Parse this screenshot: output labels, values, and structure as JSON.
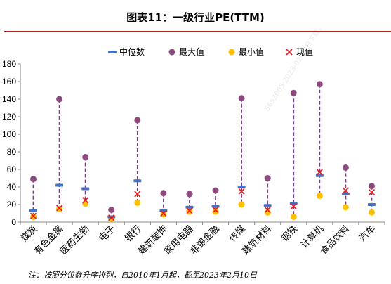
{
  "title": "图表11：一级行业PE(TTM)",
  "footnote": "注：按照分位数升序排列，自2010年1月起，截至2023年2月10日",
  "watermark": "5653005·2023-02-13日下载，",
  "colors": {
    "title_rule": "#b0231a",
    "median": "#4472c4",
    "max": "#8e4a7e",
    "min": "#ffc000",
    "current": "#e8191c",
    "whisker": "#7a3b8f",
    "axis": "#888888"
  },
  "chart_data": {
    "type": "scatter",
    "categories": [
      "煤炭",
      "有色金属",
      "医药生物",
      "电子",
      "银行",
      "建筑装饰",
      "家用电器",
      "非银金融",
      "传媒",
      "建筑材料",
      "钢铁",
      "计算机",
      "食品饮料",
      "汽车"
    ],
    "series": [
      {
        "name": "中位数",
        "marker": "dash",
        "color": "#4472c4",
        "values": [
          13,
          42,
          38,
          6,
          47,
          13,
          17,
          18,
          40,
          19,
          21,
          53,
          32,
          20
        ]
      },
      {
        "name": "最大值",
        "marker": "circle",
        "color": "#8e4a7e",
        "values": [
          49,
          140,
          74,
          14,
          116,
          33,
          32,
          36,
          141,
          50,
          147,
          157,
          62,
          41
        ]
      },
      {
        "name": "最小值",
        "marker": "circle",
        "color": "#ffc000",
        "values": [
          6,
          15,
          21,
          4,
          22,
          9,
          12,
          12,
          20,
          11,
          6,
          30,
          17,
          11
        ]
      },
      {
        "name": "现值",
        "marker": "x",
        "color": "#e8191c",
        "values": [
          7,
          16,
          25,
          5,
          32,
          10,
          13,
          14,
          35,
          14,
          18,
          57,
          36,
          34
        ]
      }
    ],
    "ylim": [
      0,
      180
    ],
    "yticks": [
      0,
      20,
      40,
      60,
      80,
      100,
      120,
      140,
      160,
      180
    ],
    "grid": false,
    "legend_position": "top-center",
    "xlabel": "",
    "ylabel": ""
  }
}
